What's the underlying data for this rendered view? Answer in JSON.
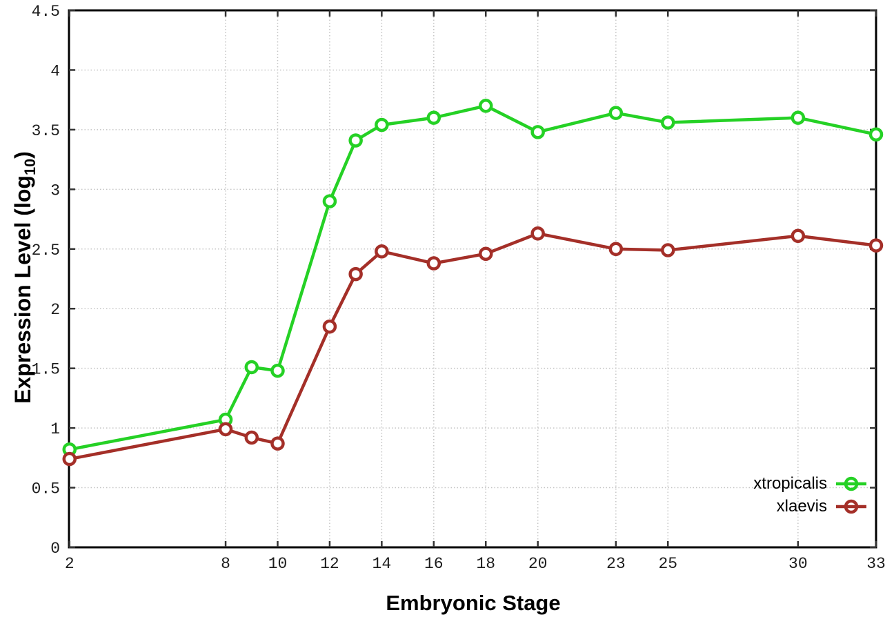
{
  "chart_data": {
    "type": "line",
    "xlabel": "Embryonic Stage",
    "ylabel": "Expression Level (log10)",
    "ylabel_prefix": "Expression Level (log",
    "ylabel_sub": "10",
    "ylabel_suffix": ")",
    "xlim": [
      1.98,
      33
    ],
    "ylim": [
      0,
      4.5
    ],
    "xticks": [
      2,
      8,
      10,
      12,
      14,
      16,
      18,
      20,
      23,
      25,
      30,
      33
    ],
    "xtick_labels": [
      "2",
      "8",
      "10",
      "12",
      "14",
      "16",
      "18",
      "20",
      "23",
      "25",
      "30",
      "33"
    ],
    "yticks": [
      0,
      0.5,
      1,
      1.5,
      2,
      2.5,
      3,
      3.5,
      4,
      4.5
    ],
    "ytick_labels": [
      "0",
      "0.5",
      "1",
      "1.5",
      "2",
      "2.5",
      "3",
      "3.5",
      "4",
      "4.5"
    ],
    "grid": true,
    "legend_position": "inside-bottom-right",
    "x": [
      2,
      8,
      9,
      10,
      12,
      13,
      14,
      16,
      18,
      20,
      23,
      25,
      30,
      33
    ],
    "series": [
      {
        "name": "xtropicalis",
        "color": "#25d125",
        "values": [
          0.82,
          1.07,
          1.51,
          1.48,
          2.9,
          3.41,
          3.54,
          3.6,
          3.7,
          3.48,
          3.64,
          3.56,
          3.6,
          3.46
        ]
      },
      {
        "name": "xlaevis",
        "color": "#a42f28",
        "values": [
          0.74,
          0.99,
          0.92,
          0.87,
          1.85,
          2.29,
          2.48,
          2.38,
          2.46,
          2.63,
          2.5,
          2.49,
          2.61,
          2.53
        ]
      }
    ],
    "style": {
      "background": "#ffffff",
      "border_color": "#000000",
      "grid_color": "#c4c4c4",
      "tick_color": "#333333",
      "tick_label_color": "#1c1c1c",
      "marker_fill": "#ffffff"
    }
  }
}
